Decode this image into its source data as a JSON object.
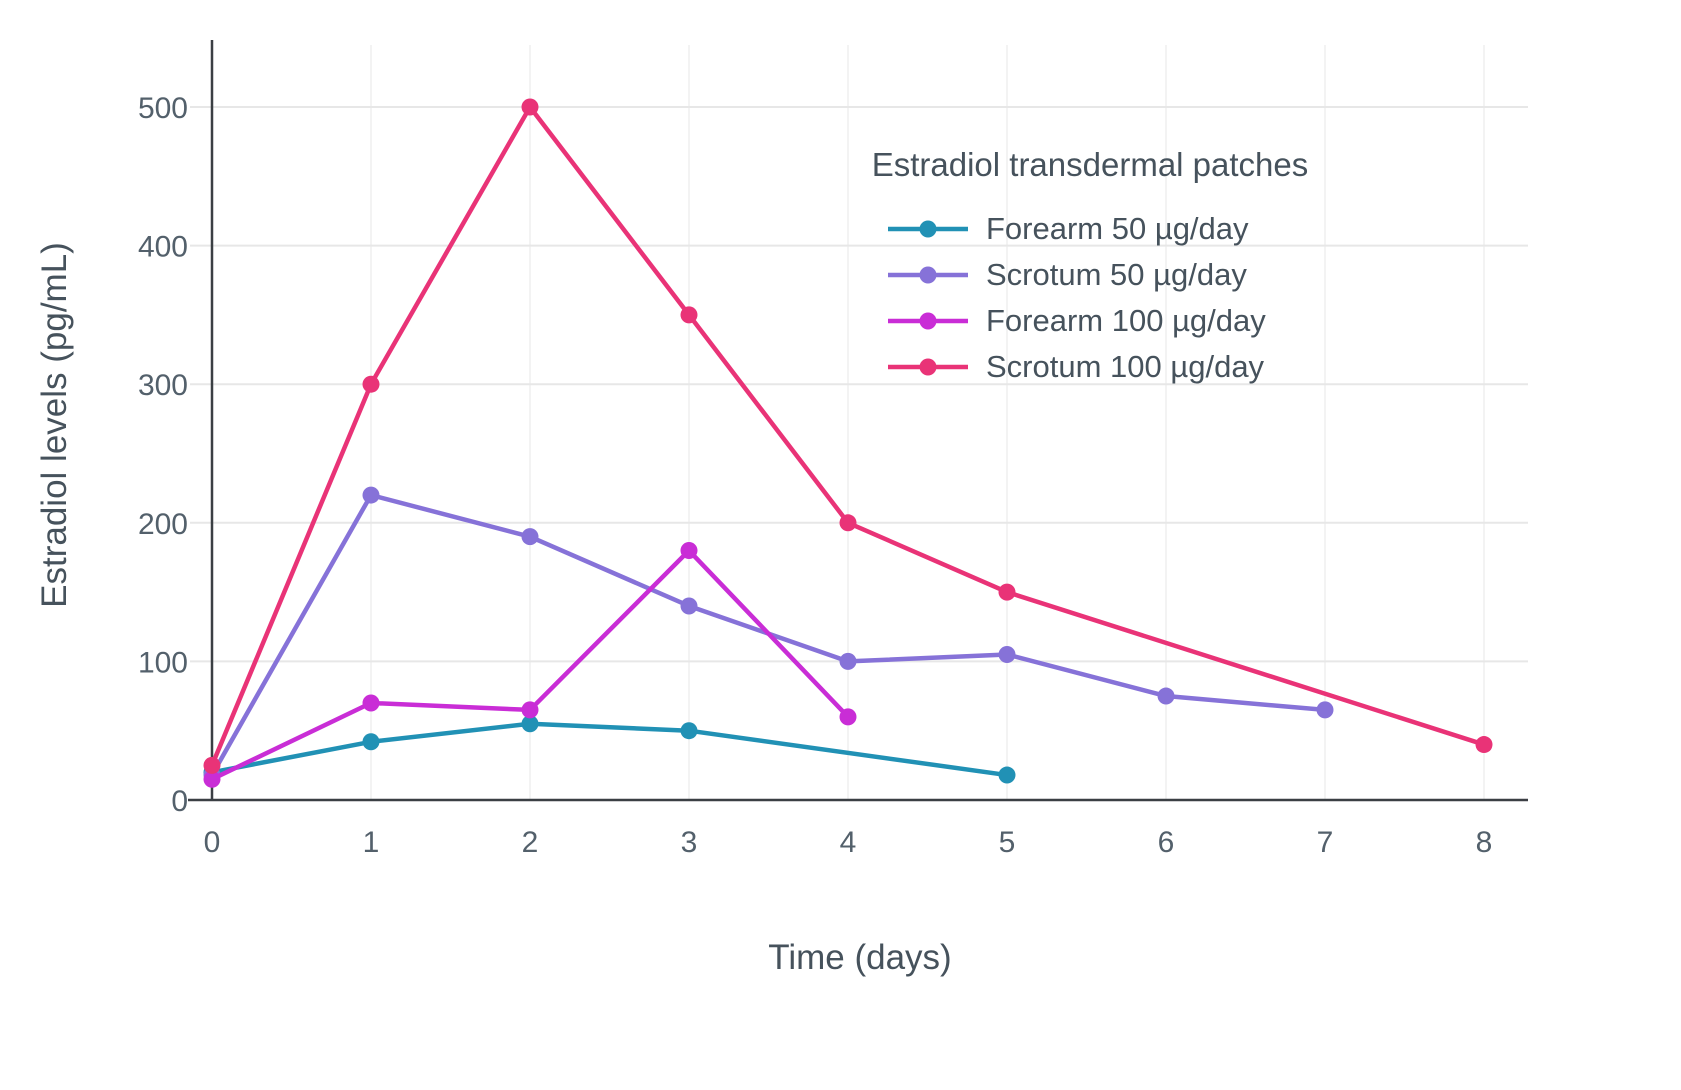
{
  "chart_data": {
    "type": "line",
    "title": "",
    "xlabel": "Time (days)",
    "ylabel": "Estradiol levels (pg/mL)",
    "legend_title": "Estradiol transdermal patches",
    "legend_position": "upper right inside plot",
    "grid": true,
    "x_ticks": [
      0,
      1,
      2,
      3,
      4,
      5,
      6,
      7,
      8
    ],
    "y_ticks": [
      0,
      100,
      200,
      300,
      400,
      500
    ],
    "xlim": [
      0,
      8
    ],
    "ylim": [
      0,
      540
    ],
    "series": [
      {
        "name": "Forearm 50 µg/day",
        "color": "#2191b5",
        "x": [
          0,
          1,
          2,
          3,
          5
        ],
        "y": [
          20,
          42,
          55,
          50,
          18
        ]
      },
      {
        "name": "Scrotum 50 µg/day",
        "color": "#8672d8",
        "x": [
          0,
          1,
          2,
          3,
          4,
          5,
          6,
          7
        ],
        "y": [
          18,
          220,
          190,
          140,
          100,
          105,
          75,
          65
        ]
      },
      {
        "name": "Forearm 100 µg/day",
        "color": "#c92dd6",
        "x": [
          0,
          1,
          2,
          3,
          4
        ],
        "y": [
          15,
          70,
          65,
          180,
          60
        ]
      },
      {
        "name": "Scrotum 100 µg/day",
        "color": "#e93377",
        "x": [
          0,
          1,
          2,
          3,
          4,
          5,
          8
        ],
        "y": [
          25,
          300,
          500,
          350,
          200,
          150,
          40
        ]
      }
    ]
  }
}
